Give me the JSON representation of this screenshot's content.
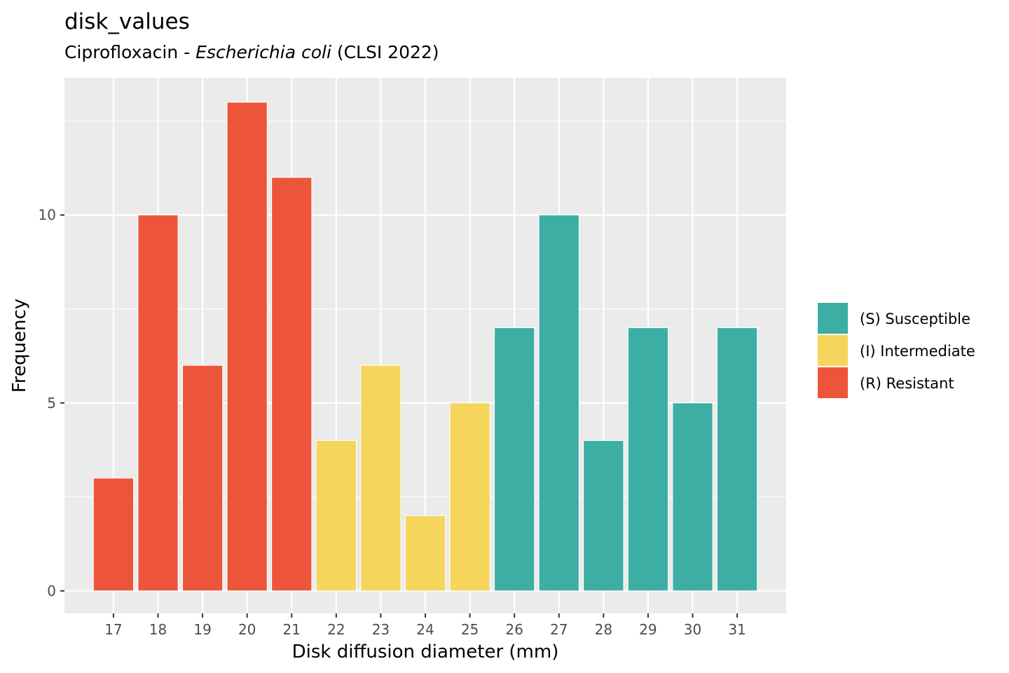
{
  "chart_data": {
    "type": "bar",
    "title": "disk_values",
    "subtitle": {
      "prefix": "Ciprofloxacin - ",
      "organism": "Escherichia coli",
      "suffix": " (CLSI 2022)"
    },
    "xlabel": "Disk diffusion diameter (mm)",
    "ylabel": "Frequency",
    "categories": [
      "17",
      "18",
      "19",
      "20",
      "21",
      "22",
      "23",
      "24",
      "25",
      "26",
      "27",
      "28",
      "29",
      "30",
      "31"
    ],
    "values": [
      3,
      10,
      6,
      13,
      11,
      4,
      6,
      2,
      5,
      7,
      10,
      4,
      7,
      5,
      7
    ],
    "interpretation": [
      "R",
      "R",
      "R",
      "R",
      "R",
      "I",
      "I",
      "I",
      "I",
      "S",
      "S",
      "S",
      "S",
      "S",
      "S"
    ],
    "ylim": [
      -0.6,
      13.65
    ],
    "yticks": [
      0,
      5,
      10
    ],
    "grid": true,
    "legend_position": "right",
    "legend": [
      {
        "key": "S",
        "label": "(S) Susceptible",
        "color": "#3caea3"
      },
      {
        "key": "I",
        "label": "(I) Intermediate",
        "color": "#f6d55c"
      },
      {
        "key": "R",
        "label": "(R) Resistant",
        "color": "#ed553b"
      }
    ],
    "panel_background": "#ebebeb",
    "grid_color": "#ffffff"
  }
}
